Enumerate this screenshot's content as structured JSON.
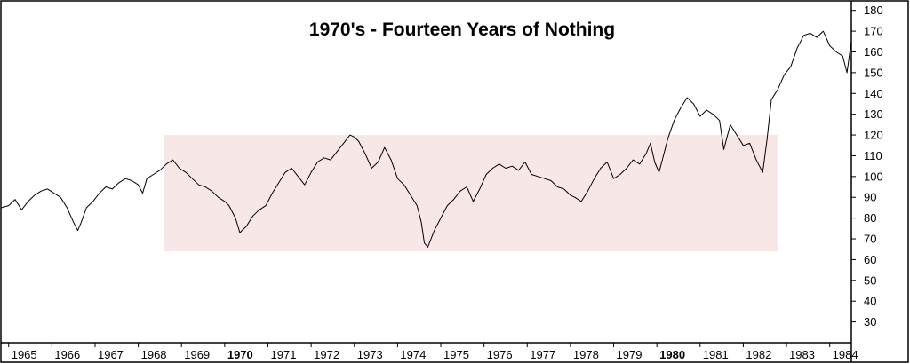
{
  "chart_data": {
    "type": "line",
    "title": "1970's - Fourteen Years of Nothing",
    "xlabel": "",
    "ylabel": "",
    "xlim": [
      1964.8,
      1984.5
    ],
    "ylim": [
      20,
      185
    ],
    "y_axis_position": "right",
    "grid": false,
    "legend": "none",
    "x_ticks": [
      {
        "label": "1965",
        "value": 1965,
        "bold": false
      },
      {
        "label": "1966",
        "value": 1966,
        "bold": false
      },
      {
        "label": "1967",
        "value": 1967,
        "bold": false
      },
      {
        "label": "1968",
        "value": 1968,
        "bold": false
      },
      {
        "label": "1969",
        "value": 1969,
        "bold": false
      },
      {
        "label": "1970",
        "value": 1970,
        "bold": true
      },
      {
        "label": "1971",
        "value": 1971,
        "bold": false
      },
      {
        "label": "1972",
        "value": 1972,
        "bold": false
      },
      {
        "label": "1973",
        "value": 1973,
        "bold": false
      },
      {
        "label": "1974",
        "value": 1974,
        "bold": false
      },
      {
        "label": "1975",
        "value": 1975,
        "bold": false
      },
      {
        "label": "1976",
        "value": 1976,
        "bold": false
      },
      {
        "label": "1977",
        "value": 1977,
        "bold": false
      },
      {
        "label": "1978",
        "value": 1978,
        "bold": false
      },
      {
        "label": "1979",
        "value": 1979,
        "bold": false
      },
      {
        "label": "1980",
        "value": 1980,
        "bold": true
      },
      {
        "label": "1981",
        "value": 1981,
        "bold": false
      },
      {
        "label": "1982",
        "value": 1982,
        "bold": false
      },
      {
        "label": "1983",
        "value": 1983,
        "bold": false
      },
      {
        "label": "1984",
        "value": 1984,
        "bold": false
      }
    ],
    "y_ticks": [
      30,
      40,
      50,
      60,
      70,
      80,
      90,
      100,
      110,
      120,
      130,
      140,
      150,
      160,
      170,
      180
    ],
    "shaded_range": {
      "x_start": 1968.6,
      "x_end": 1982.8,
      "y_low": 64,
      "y_high": 120,
      "color": "#f7e7e7"
    },
    "series": [
      {
        "color": "#000000",
        "x": [
          1964.83,
          1965.0,
          1965.15,
          1965.3,
          1965.45,
          1965.6,
          1965.75,
          1965.9,
          1966.05,
          1966.2,
          1966.35,
          1966.5,
          1966.6,
          1966.68,
          1966.8,
          1966.95,
          1967.1,
          1967.25,
          1967.4,
          1967.55,
          1967.7,
          1967.85,
          1968.0,
          1968.1,
          1968.2,
          1968.35,
          1968.5,
          1968.65,
          1968.8,
          1968.95,
          1969.1,
          1969.25,
          1969.4,
          1969.55,
          1969.7,
          1969.85,
          1970.0,
          1970.1,
          1970.25,
          1970.35,
          1970.5,
          1970.65,
          1970.8,
          1970.95,
          1971.1,
          1971.25,
          1971.4,
          1971.55,
          1971.7,
          1971.85,
          1972.0,
          1972.15,
          1972.3,
          1972.45,
          1972.6,
          1972.75,
          1972.9,
          1973.0,
          1973.1,
          1973.25,
          1973.4,
          1973.55,
          1973.7,
          1973.85,
          1974.0,
          1974.15,
          1974.3,
          1974.45,
          1974.55,
          1974.62,
          1974.7,
          1974.85,
          1975.0,
          1975.15,
          1975.3,
          1975.45,
          1975.6,
          1975.75,
          1975.9,
          1976.05,
          1976.2,
          1976.35,
          1976.5,
          1976.65,
          1976.8,
          1976.95,
          1977.1,
          1977.25,
          1977.4,
          1977.55,
          1977.7,
          1977.85,
          1978.0,
          1978.1,
          1978.25,
          1978.4,
          1978.55,
          1978.7,
          1978.85,
          1979.0,
          1979.15,
          1979.3,
          1979.45,
          1979.6,
          1979.75,
          1979.85,
          1979.95,
          1980.05,
          1980.15,
          1980.25,
          1980.4,
          1980.55,
          1980.7,
          1980.85,
          1981.0,
          1981.15,
          1981.3,
          1981.45,
          1981.55,
          1981.7,
          1981.85,
          1982.0,
          1982.15,
          1982.3,
          1982.45,
          1982.55,
          1982.65,
          1982.8,
          1982.95,
          1983.1,
          1983.25,
          1983.4,
          1983.55,
          1983.7,
          1983.85,
          1984.0,
          1984.15,
          1984.3,
          1984.4,
          1984.5
        ],
        "values": [
          85,
          86,
          89,
          84,
          88,
          91,
          93,
          94,
          92,
          90,
          85,
          78,
          74,
          78,
          85,
          88,
          92,
          95,
          94,
          97,
          99,
          98,
          96,
          92,
          99,
          101,
          103,
          106,
          108,
          104,
          102,
          99,
          96,
          95,
          93,
          90,
          88,
          86,
          80,
          73,
          76,
          81,
          84,
          86,
          92,
          97,
          102,
          104,
          100,
          96,
          102,
          107,
          109,
          108,
          112,
          116,
          120,
          119,
          117,
          111,
          104,
          107,
          114,
          108,
          99,
          96,
          91,
          86,
          78,
          68,
          66,
          74,
          80,
          86,
          89,
          93,
          95,
          88,
          94,
          101,
          104,
          106,
          104,
          105,
          103,
          107,
          101,
          100,
          99,
          98,
          95,
          94,
          91,
          90,
          88,
          93,
          99,
          104,
          107,
          99,
          101,
          104,
          108,
          106,
          111,
          116,
          107,
          102,
          110,
          118,
          127,
          133,
          138,
          135,
          129,
          132,
          130,
          127,
          113,
          125,
          120,
          115,
          116,
          108,
          102,
          118,
          137,
          142,
          149,
          153,
          162,
          168,
          169,
          167,
          170,
          163,
          160,
          158,
          150,
          165
        ]
      }
    ]
  }
}
